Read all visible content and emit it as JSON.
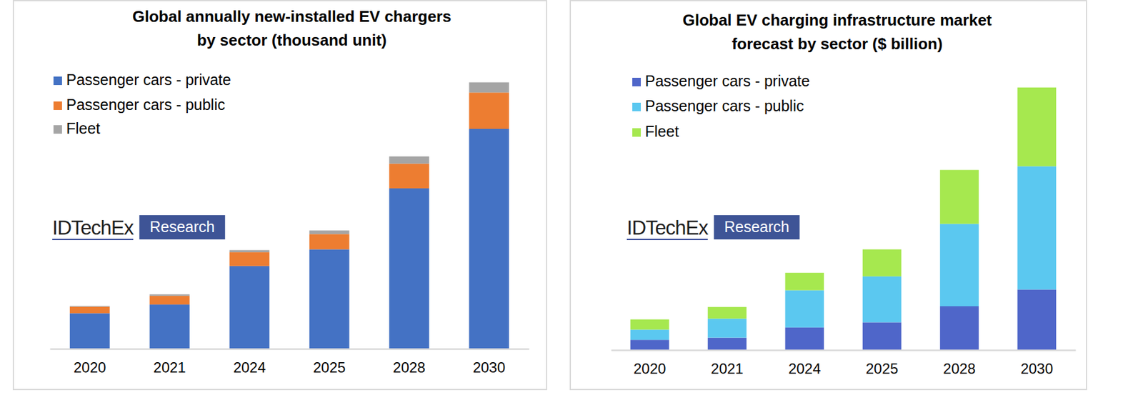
{
  "chart_data": [
    {
      "type": "bar",
      "title": [
        "Global annually new-installed EV chargers",
        "by sector (thousand unit)"
      ],
      "categories": [
        "2020",
        "2021",
        "2024",
        "2025",
        "2028",
        "2030"
      ],
      "series": [
        {
          "name": "Passenger cars - private",
          "color": "#4472c4",
          "values": [
            2450,
            3050,
            5700,
            6850,
            11050,
            15150
          ]
        },
        {
          "name": "Passenger cars - public",
          "color": "#ed7d31",
          "values": [
            450,
            600,
            950,
            1050,
            1700,
            2500
          ]
        },
        {
          "name": "Fleet",
          "color": "#a5a5a5",
          "values": [
            50,
            100,
            150,
            250,
            500,
            700
          ]
        }
      ],
      "ylim": [
        0,
        19000
      ],
      "stacked": true,
      "grid": false,
      "legend": "top-left",
      "tick_labels": "x",
      "watermark": {
        "brand": "IDTechEx",
        "label": "Research"
      }
    },
    {
      "type": "bar",
      "title": [
        "Global EV charging infrastructure market",
        "forecast by sector ($ billion)"
      ],
      "categories": [
        "2020",
        "2021",
        "2024",
        "2025",
        "2028",
        "2030"
      ],
      "series": [
        {
          "name": "Passenger cars - private",
          "color": "#4f66c9",
          "values": [
            5.6,
            6.8,
            12.4,
            15.2,
            24,
            33.2
          ]
        },
        {
          "name": "Passenger cars - public",
          "color": "#5bc8f0",
          "values": [
            5.6,
            10.4,
            20.4,
            25.2,
            45.2,
            67.6
          ]
        },
        {
          "name": "Fleet",
          "color": "#a6e84f",
          "values": [
            5.6,
            6.4,
            9.6,
            14.8,
            29.6,
            43.2
          ]
        }
      ],
      "ylim": [
        0,
        150
      ],
      "stacked": true,
      "grid": false,
      "legend": "top-left",
      "tick_labels": "x",
      "watermark": {
        "brand": "IDTechEx",
        "label": "Research"
      }
    }
  ]
}
